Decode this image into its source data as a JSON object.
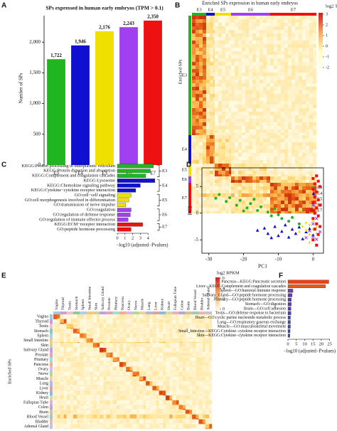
{
  "chart_data": [
    {
      "type": "bar",
      "panel": "A",
      "title": "SPs expressed in human early embryos (TPM > 0.1)",
      "ylabel": "Number of SPs",
      "categories": [
        "E3",
        "E4",
        "E5",
        "E6",
        "E7"
      ],
      "values": [
        1722,
        1946,
        2176,
        2243,
        2350
      ],
      "value_labels": [
        "1,722",
        "1,946",
        "2,176",
        "2,243",
        "2,350"
      ],
      "colors": [
        "#22b522",
        "#1010d0",
        "#f0e000",
        "#a040f0",
        "#ee1111"
      ],
      "ylim": [
        0,
        2500
      ],
      "yticks": [
        0,
        500,
        {
          "value": 1000,
          "label": "1,000"
        },
        {
          "value": 1500,
          "label": "1,500"
        },
        {
          "value": 2000,
          "label": "2,000"
        }
      ]
    },
    {
      "type": "heatmap",
      "panel": "B",
      "title": "Enriched SPs expression in human early embryos",
      "ylabel": "Enriched SPs",
      "columns": [
        "E3",
        "E4",
        "E5",
        "E6",
        "E7"
      ],
      "rows": [
        "E3",
        "E4",
        "E5",
        "E6",
        "E7"
      ],
      "colors": [
        "#22b522",
        "#1010d0",
        "#f0e000",
        "#a040f0",
        "#ee1111"
      ],
      "legend_title": "log2 TPM",
      "legend_ticks": [
        3,
        2,
        1,
        0,
        -1,
        -2
      ]
    },
    {
      "type": "barh",
      "panel": "C",
      "xlabel": "−log10 (adjusted−Pvalues)",
      "xlim": [
        0,
        5
      ],
      "xticks": [
        0,
        1,
        2,
        3,
        4
      ],
      "series": [
        {
          "name": "E3",
          "color": "#22b522",
          "categories": [
            "KEGG:Protein processing in endoplasmic reticulum",
            "KEGG:Protein digestion and absorption",
            "KEGG:Complement and coagulation cascades"
          ],
          "values": [
            4.7,
            4.3,
            3.7
          ]
        },
        {
          "name": "E4",
          "color": "#1010d0",
          "categories": [
            "KEGG:Lysosome",
            "KEGG:Chemokine signaling pathway",
            "KEGG:Cytokine−cytokine receptor interaction"
          ],
          "values": [
            4.9,
            3.0,
            2.4
          ]
        },
        {
          "name": "E5",
          "color": "#f0e000",
          "categories": [
            "GO:cell−cell signaling",
            "GO:cell morphogenesis involved in differentiation",
            "GO:transmission of nerve impulse"
          ],
          "values": [
            1.8,
            1.5,
            1.1
          ]
        },
        {
          "name": "E6",
          "color": "#a040f0",
          "categories": [
            "GO:coagulation",
            "GO:regulation of defense response",
            "GO:regulation of immune effector process"
          ],
          "values": [
            1.8,
            1.7,
            1.4
          ]
        },
        {
          "name": "E7",
          "color": "#ee1111",
          "categories": [
            "KEGG:ECM−receptor interaction",
            "GO:peptide hormone processing"
          ],
          "values": [
            3.3,
            1.8
          ]
        }
      ]
    },
    {
      "type": "scatter",
      "panel": "D",
      "xlabel": "PC1",
      "ylabel": "PC2",
      "xlim": [
        -32,
        3
      ],
      "xticks": [
        -30,
        -20,
        -10,
        0
      ],
      "ylim": [
        -7.5,
        8.5
      ],
      "yticks": [
        -5,
        0,
        5
      ],
      "series": [
        {
          "name": "E3",
          "color": "#22b522",
          "marker": "circle",
          "x": [
            -28,
            -27,
            -25,
            -24,
            -22,
            -21,
            -19,
            -18,
            -16,
            -15,
            -13,
            -12,
            -10,
            -9,
            -7,
            -6,
            -4,
            -20,
            -17,
            -11
          ],
          "y": [
            2.8,
            3.5,
            2.2,
            2.9,
            1.5,
            2.4,
            1.0,
            1.8,
            0.5,
            1.2,
            0.2,
            -0.5,
            -0.3,
            -1.0,
            -1.5,
            -0.8,
            -2.0,
            0.4,
            2.6,
            0.8
          ]
        },
        {
          "name": "E4",
          "color": "#1010d0",
          "marker": "triangle",
          "x": [
            -16,
            -14,
            -13,
            -11,
            -10,
            -9,
            -8,
            -7,
            -6,
            -5,
            -4,
            -3,
            -2,
            -1,
            0,
            -12
          ],
          "y": [
            -3.2,
            -2.8,
            -3.8,
            -2.5,
            -4.2,
            -3.4,
            -2.2,
            -4.5,
            -3.0,
            -3.8,
            -2.6,
            -4.8,
            -3.5,
            -2.9,
            -4.1,
            -4.6
          ]
        },
        {
          "name": "E5",
          "color": "#e8d800",
          "marker": "plus",
          "x": [
            -3,
            -2,
            -2,
            -1,
            -1,
            0,
            0,
            0,
            1,
            1,
            -4,
            -1
          ],
          "y": [
            -2.5,
            -1.8,
            -3.2,
            -2.2,
            -4.0,
            -1.5,
            -3.0,
            -5.0,
            -2.6,
            -3.8,
            -3.5,
            -5.5
          ]
        },
        {
          "name": "E6",
          "color": "#a040f0",
          "marker": "x",
          "x": [
            -1,
            0,
            0,
            1,
            1,
            0,
            -2,
            2
          ],
          "y": [
            -3.3,
            -4.4,
            -2.0,
            -4.9,
            -1.0,
            1.5,
            -4.6,
            -3.5
          ]
        },
        {
          "name": "E7",
          "color": "#ee1111",
          "marker": "square",
          "x": [
            0,
            1,
            0.5,
            1.5,
            0,
            1,
            0.5,
            1.5,
            0,
            1,
            0.5,
            1.5,
            0,
            1,
            0.5,
            1.5,
            0,
            1,
            2,
            2,
            -0.5,
            2
          ],
          "y": [
            6.5,
            7.0,
            5.5,
            6.0,
            4.5,
            4.0,
            3.0,
            2.5,
            2.0,
            1.0,
            0,
            -0.5,
            -1.0,
            -2.0,
            -3.0,
            -4.0,
            -5.0,
            -6.0,
            5.0,
            1.5,
            0.5,
            -2.5
          ]
        }
      ]
    },
    {
      "type": "heatmap",
      "panel": "E",
      "ylabel": "Enriched SPs",
      "columns": [
        "Vagina",
        "Thyroid",
        "Testis",
        "Stomach",
        "Spleen",
        "Small Intestine",
        "Skin",
        "Salivary Gland",
        "Prostate",
        "Pituitary",
        "Pancreas",
        "Ovary",
        "Nerve",
        "Muscle",
        "Lung",
        "Liver",
        "Kidney",
        "Heart",
        "Fallopian Tube",
        "Colon",
        "Brain",
        "Blood Vessel",
        "Bladder",
        "Adrenal Gland"
      ],
      "rows": [
        "Vagina",
        "Thyroid",
        "Testis",
        "Stomach",
        "Spleen",
        "Small Intestine",
        "Skin",
        "Salivary Gland",
        "Prostate",
        "Pituitary",
        "Pancreas",
        "Ovary",
        "Nerve",
        "Muscle",
        "Lung",
        "Liver",
        "Kidney",
        "Heart",
        "Fallopian Tube",
        "Colon",
        "Brain",
        "Blood Vessel",
        "Bladder",
        "Adrenal Gland"
      ],
      "legend_title": "log2 RPKM",
      "legend_ticks": [
        6,
        4,
        2,
        0
      ]
    },
    {
      "type": "barh",
      "panel": "F",
      "xlabel": "−log10 (adjusted−Pvalues)",
      "xlim": [
        0,
        26
      ],
      "xticks": [
        0,
        5,
        10,
        15,
        20,
        25
      ],
      "series": [
        {
          "categories": [
            "Pancreas—KEGG:Pancreatic secretion",
            "Liver—KEGG:Complement and coagulation cascades",
            "Spleen—GO:humoral immune response",
            "Salivary_Gland—GO:peptide hormone processing",
            "Pituitary—GO:peptide hormone processing",
            "Stomach—GO:digestion",
            "Brain—GO:cell adhesion",
            "Testis—GO:defense response to bacterium",
            "Heart—GO:cyclic purine nucleotide metabolic process",
            "Lung—GO:respiratory gaseous exchange",
            "Muscle—GO:musculoskeletal movement",
            "Small_Intestine—KEGG:Cytokine−cytokine receptor interaction",
            "Skin—KEGG:Cytokine−cytokine receptor interaction"
          ],
          "values": [
            24.5,
            22.5,
            3.0,
            2.5,
            2.0,
            2.0,
            1.8,
            1.8,
            1.5,
            1.5,
            1.5,
            1.3,
            1.2
          ],
          "colors": [
            "#e8401a",
            "#e85a1a",
            "#7040a8",
            "#6040a8",
            "#5a40b0",
            "#5a40b0",
            "#5040b0",
            "#5040b0",
            "#4848b8",
            "#4848b8",
            "#4848b8",
            "#4050b8",
            "#4050b8"
          ]
        }
      ]
    }
  ]
}
